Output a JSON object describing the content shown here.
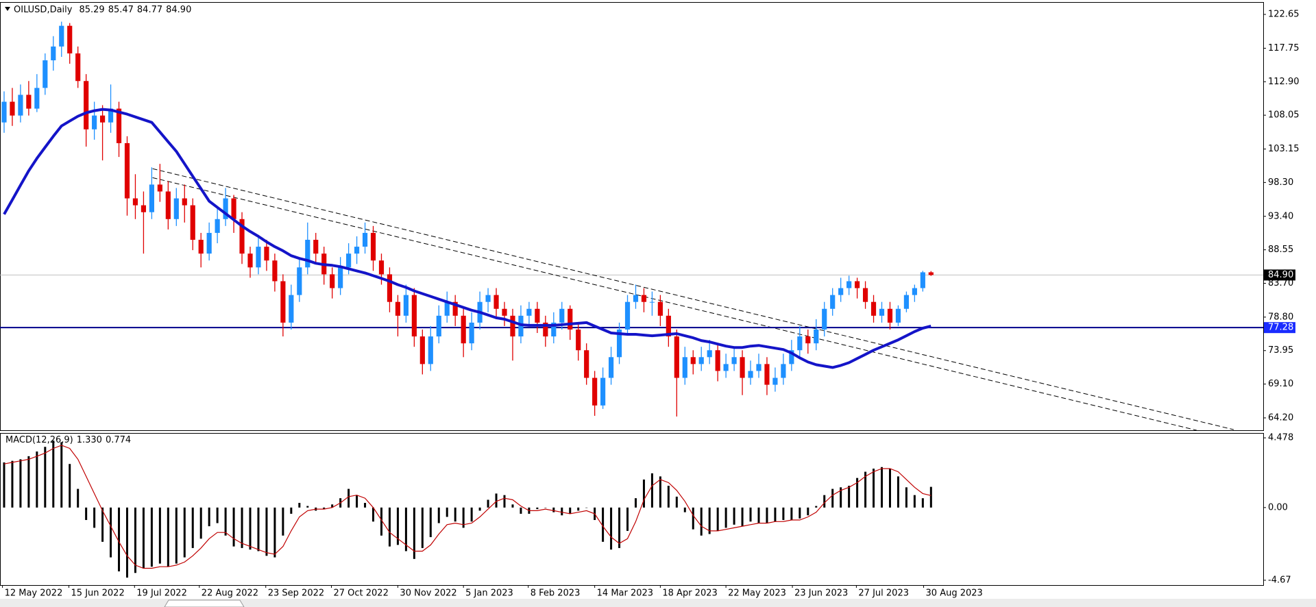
{
  "chart_data": [
    {
      "type": "candlestick",
      "header": {
        "symbol": "OILUSD,Daily",
        "ohlc": [
          "85.29",
          "85.47",
          "84.77",
          "84.90"
        ]
      },
      "up_color": "#1e90ff",
      "down_color": "#e00000",
      "candles": [
        [
          107,
          111.5,
          105.5,
          110
        ],
        [
          110,
          112,
          106.5,
          108
        ],
        [
          108,
          112.5,
          107,
          111
        ],
        [
          111,
          113,
          108,
          109
        ],
        [
          109,
          114,
          108.5,
          112
        ],
        [
          112,
          117,
          111,
          116
        ],
        [
          116,
          119.5,
          114.5,
          118
        ],
        [
          118,
          121.6,
          116.5,
          121
        ],
        [
          121,
          121.4,
          115.5,
          117
        ],
        [
          117,
          118,
          112,
          113
        ],
        [
          113,
          114,
          103.5,
          106
        ],
        [
          106,
          110,
          104.5,
          108
        ],
        [
          108,
          109.5,
          101.5,
          107
        ],
        [
          107,
          112.5,
          105.5,
          109
        ],
        [
          109,
          110,
          102,
          104
        ],
        [
          104,
          105,
          93.5,
          96
        ],
        [
          96,
          99.5,
          93,
          95
        ],
        [
          95,
          97,
          88,
          94
        ],
        [
          94,
          100.5,
          93,
          98
        ],
        [
          98,
          101,
          95.5,
          97
        ],
        [
          97,
          98.5,
          91.5,
          93
        ],
        [
          93,
          97.5,
          92,
          96
        ],
        [
          96,
          98,
          92.5,
          95
        ],
        [
          95,
          96,
          88.5,
          90
        ],
        [
          90,
          91,
          86,
          88
        ],
        [
          88,
          92.5,
          87,
          91
        ],
        [
          91,
          94.5,
          89.5,
          93
        ],
        [
          93,
          97.5,
          92,
          96
        ],
        [
          96,
          96.5,
          91,
          93
        ],
        [
          93,
          94,
          86.5,
          88
        ],
        [
          88,
          89,
          84.5,
          86
        ],
        [
          86,
          90.5,
          85,
          89
        ],
        [
          89,
          90,
          85.5,
          87
        ],
        [
          87,
          88,
          82.5,
          84
        ],
        [
          84,
          85,
          76,
          78
        ],
        [
          78,
          83.5,
          77,
          82
        ],
        [
          82,
          87.5,
          81,
          86
        ],
        [
          86,
          92.5,
          85,
          90
        ],
        [
          90,
          91,
          86.5,
          88
        ],
        [
          88,
          89,
          83.5,
          85
        ],
        [
          85,
          86,
          81.5,
          83
        ],
        [
          83,
          87.5,
          82,
          86
        ],
        [
          86,
          89.5,
          85,
          88
        ],
        [
          88,
          90.5,
          86.5,
          89
        ],
        [
          89,
          92.5,
          88,
          91
        ],
        [
          91,
          92,
          85.5,
          87
        ],
        [
          87,
          88,
          83.5,
          85
        ],
        [
          85,
          86,
          79.5,
          81
        ],
        [
          81,
          82,
          76,
          79
        ],
        [
          79,
          83.5,
          78,
          82
        ],
        [
          82,
          83,
          74.5,
          76
        ],
        [
          76,
          77,
          70.5,
          72
        ],
        [
          72,
          77.5,
          71,
          76
        ],
        [
          76,
          80.5,
          75,
          79
        ],
        [
          79,
          82.5,
          78,
          81
        ],
        [
          81,
          82,
          77.5,
          79
        ],
        [
          79,
          80,
          73,
          75
        ],
        [
          75,
          79.5,
          74,
          78
        ],
        [
          78,
          82.5,
          77,
          81
        ],
        [
          81,
          83,
          79.5,
          82
        ],
        [
          82,
          83,
          78.5,
          80
        ],
        [
          80,
          81,
          77.5,
          79
        ],
        [
          79,
          80,
          72.5,
          76
        ],
        [
          76,
          80.5,
          75,
          79
        ],
        [
          79,
          81,
          77.5,
          80
        ],
        [
          80,
          81,
          76.5,
          78
        ],
        [
          78,
          79,
          74.5,
          76
        ],
        [
          76,
          79.5,
          75,
          78
        ],
        [
          78,
          81,
          77,
          80
        ],
        [
          80,
          80.5,
          75.5,
          77
        ],
        [
          77,
          78,
          72.5,
          74
        ],
        [
          74,
          75,
          69,
          70
        ],
        [
          70,
          71,
          64.5,
          66
        ],
        [
          66,
          71.5,
          65.5,
          70
        ],
        [
          70,
          74.5,
          69,
          73
        ],
        [
          73,
          78,
          72,
          77
        ],
        [
          77,
          82,
          76.5,
          81
        ],
        [
          81,
          83.5,
          80,
          82
        ],
        [
          82,
          83,
          79.5,
          81
        ],
        [
          81,
          82.5,
          79,
          81
        ],
        [
          81,
          82,
          77.5,
          79
        ],
        [
          79,
          80,
          74.5,
          76
        ],
        [
          76,
          77,
          64.4,
          70
        ],
        [
          70,
          74.5,
          69,
          73
        ],
        [
          73,
          74,
          70.5,
          72
        ],
        [
          72,
          74.5,
          71,
          73
        ],
        [
          73,
          75.5,
          72,
          74
        ],
        [
          74,
          75,
          69.5,
          71
        ],
        [
          71,
          73.5,
          70,
          72
        ],
        [
          72,
          74.5,
          71,
          73
        ],
        [
          73,
          74,
          67.5,
          70
        ],
        [
          70,
          72.5,
          69,
          71
        ],
        [
          71,
          73.5,
          70,
          72
        ],
        [
          72,
          73,
          67.5,
          69
        ],
        [
          69,
          71.5,
          68,
          70
        ],
        [
          70,
          73.5,
          69,
          72
        ],
        [
          72,
          75.5,
          71,
          74
        ],
        [
          74,
          77.5,
          73,
          76
        ],
        [
          76,
          77,
          73.5,
          75
        ],
        [
          75,
          78.5,
          74,
          77
        ],
        [
          77,
          81,
          76,
          80
        ],
        [
          80,
          83,
          79,
          82
        ],
        [
          82,
          84.5,
          81,
          83
        ],
        [
          83,
          84.8,
          82,
          84
        ],
        [
          84,
          84.5,
          81.5,
          83
        ],
        [
          83,
          84,
          80,
          81
        ],
        [
          81,
          82,
          78,
          79
        ],
        [
          79,
          81,
          78,
          80
        ],
        [
          80,
          81,
          77,
          78
        ],
        [
          78,
          80.5,
          77.5,
          80
        ],
        [
          80,
          82.5,
          79.5,
          82
        ],
        [
          82,
          83.5,
          81,
          83
        ],
        [
          83,
          85.5,
          82.5,
          85.29
        ],
        [
          85.29,
          85.47,
          84.77,
          84.9
        ]
      ],
      "ma": {
        "color": "#1414c8",
        "values": [
          93.7,
          95.8,
          97.9,
          100.0,
          101.8,
          103.4,
          105.0,
          106.5,
          107.2,
          107.9,
          108.4,
          108.7,
          108.9,
          108.8,
          108.5,
          108.2,
          107.8,
          107.4,
          107.0,
          105.6,
          104.2,
          102.8,
          101.0,
          99.2,
          97.4,
          95.6,
          94.7,
          93.8,
          92.9,
          92.0,
          91.2,
          90.5,
          89.7,
          89.0,
          88.4,
          87.7,
          87.3,
          87.0,
          86.6,
          86.4,
          86.3,
          86.1,
          85.8,
          85.5,
          85.2,
          84.8,
          84.4,
          84.0,
          83.5,
          83.1,
          82.6,
          82.2,
          81.8,
          81.4,
          81.0,
          80.6,
          80.2,
          79.8,
          79.5,
          79.1,
          78.7,
          78.5,
          78.1,
          77.7,
          77.6,
          77.6,
          77.6,
          77.6,
          77.7,
          77.8,
          77.9,
          78.0,
          77.5,
          77.0,
          76.5,
          76.4,
          76.3,
          76.3,
          76.2,
          76.1,
          76.2,
          76.3,
          76.4,
          76.1,
          75.8,
          75.4,
          75.2,
          74.9,
          74.6,
          74.4,
          74.4,
          74.6,
          74.7,
          74.5,
          74.3,
          74.1,
          73.6,
          72.9,
          72.3,
          71.9,
          71.7,
          71.5,
          71.8,
          72.2,
          72.8,
          73.4,
          74.0,
          74.5,
          75.0,
          75.5,
          76.1,
          76.7,
          77.2,
          77.5
        ]
      },
      "trendlines": [
        {
          "x": [
            18.6,
            150.4
          ],
          "y": [
            100.3,
            62.5
          ]
        },
        {
          "x": [
            18.6,
            145.9
          ],
          "y": [
            99.0,
            62.4
          ]
        }
      ],
      "level": {
        "value": 77.28,
        "color": "#00008b",
        "label_color": "#1a2cff"
      },
      "price_line": {
        "value": 84.9,
        "label": "84.90"
      },
      "xlim": [
        0,
        154
      ],
      "ylim": [
        62.41,
        124.44
      ],
      "yticks": [
        122.65,
        117.75,
        {
          "value": 112.9,
          "label": "112.90"
        },
        108.05,
        103.15,
        {
          "value": 98.3,
          "label": "98.30"
        },
        {
          "value": 93.4,
          "label": "93.40"
        },
        88.55,
        {
          "value": 83.7,
          "label": "83.70"
        },
        {
          "value": 78.8,
          "label": "78.80"
        },
        73.95,
        {
          "value": 69.1,
          "label": "69.10"
        },
        {
          "value": 64.2,
          "label": "64.20"
        }
      ]
    },
    {
      "type": "macd",
      "title": "MACD(12,26,9)",
      "main": {
        "value": 1.33,
        "label": "1.330"
      },
      "signal_value": 0.774,
      "histogram": {
        "color": "#000000",
        "values": [
          2.9,
          3.0,
          3.1,
          3.3,
          3.6,
          3.9,
          4.3,
          4.2,
          2.8,
          1.2,
          -0.8,
          -1.3,
          -2.2,
          -3.2,
          -4.1,
          -4.5,
          -4.2,
          -3.9,
          -3.8,
          -3.6,
          -3.8,
          -3.6,
          -3.2,
          -2.6,
          -2.0,
          -1.2,
          -1.0,
          -1.8,
          -2.5,
          -2.6,
          -2.7,
          -2.8,
          -3.1,
          -3.2,
          -1.8,
          -0.4,
          0.3,
          0.1,
          -0.2,
          -0.1,
          0.2,
          0.6,
          1.2,
          0.8,
          0.3,
          -0.9,
          -1.8,
          -2.5,
          -2.4,
          -2.8,
          -3.3,
          -2.6,
          -1.9,
          -1.0,
          -0.6,
          -0.9,
          -1.3,
          -0.9,
          -0.2,
          0.5,
          0.9,
          0.8,
          0.2,
          -0.4,
          -0.4,
          -0.1,
          0.0,
          -0.3,
          -0.5,
          -0.4,
          -0.2,
          0.0,
          -0.8,
          -2.2,
          -2.7,
          -2.6,
          -1.5,
          0.6,
          1.8,
          2.2,
          2.0,
          1.4,
          0.7,
          -0.3,
          -1.4,
          -1.8,
          -1.7,
          -1.5,
          -1.3,
          -1.1,
          -1.2,
          -0.9,
          -1.0,
          -1.0,
          -0.9,
          -0.8,
          -0.8,
          -0.7,
          -0.5,
          0.1,
          0.8,
          1.2,
          1.3,
          1.4,
          1.9,
          2.3,
          2.5,
          2.6,
          2.5,
          2.0,
          1.3,
          0.8,
          0.6,
          1.33
        ]
      },
      "signal": {
        "color": "#c00000",
        "values": [
          2.8,
          2.9,
          3.0,
          3.1,
          3.3,
          3.5,
          3.8,
          4.0,
          3.8,
          3.1,
          2.0,
          0.9,
          -0.2,
          -1.2,
          -2.2,
          -3.1,
          -3.7,
          -3.9,
          -3.9,
          -3.8,
          -3.8,
          -3.7,
          -3.5,
          -3.1,
          -2.6,
          -2.0,
          -1.6,
          -1.6,
          -2.0,
          -2.3,
          -2.5,
          -2.7,
          -2.9,
          -3.0,
          -2.5,
          -1.5,
          -0.6,
          -0.2,
          -0.1,
          -0.1,
          0.0,
          0.3,
          0.7,
          0.8,
          0.6,
          0.0,
          -0.8,
          -1.6,
          -2.0,
          -2.4,
          -2.8,
          -2.8,
          -2.4,
          -1.7,
          -1.1,
          -1.0,
          -1.1,
          -1.0,
          -0.6,
          -0.1,
          0.4,
          0.6,
          0.5,
          0.1,
          -0.2,
          -0.2,
          -0.1,
          -0.2,
          -0.3,
          -0.4,
          -0.3,
          -0.2,
          -0.4,
          -1.2,
          -1.9,
          -2.3,
          -2.0,
          -0.9,
          0.5,
          1.4,
          1.8,
          1.6,
          1.1,
          0.4,
          -0.5,
          -1.2,
          -1.5,
          -1.5,
          -1.4,
          -1.3,
          -1.2,
          -1.1,
          -1.0,
          -1.0,
          -0.9,
          -0.9,
          -0.8,
          -0.8,
          -0.6,
          -0.3,
          0.3,
          0.8,
          1.1,
          1.3,
          1.6,
          2.0,
          2.3,
          2.5,
          2.5,
          2.3,
          1.8,
          1.3,
          0.9,
          0.774
        ]
      },
      "xlim": [
        0,
        154
      ],
      "ylim": [
        -4.98,
        4.79
      ],
      "yticks": [
        4.478,
        {
          "value": 0,
          "label": "0.00"
        },
        -4.67
      ],
      "xticks": [
        {
          "value": 0.3,
          "label": "12 May 2022"
        },
        {
          "value": 8.4,
          "label": "15 Jun 2022"
        },
        {
          "value": 16.4,
          "label": "19 Jul 2022"
        },
        {
          "value": 24.3,
          "label": "22 Aug 2022"
        },
        {
          "value": 32.4,
          "label": "23 Sep 2022"
        },
        {
          "value": 40.4,
          "label": "27 Oct 2022"
        },
        {
          "value": 48.5,
          "label": "30 Nov 2022"
        },
        {
          "value": 56.5,
          "label": "5 Jan 2023"
        },
        {
          "value": 64.4,
          "label": "8 Feb 2023"
        },
        {
          "value": 72.5,
          "label": "14 Mar 2023"
        },
        {
          "value": 80.5,
          "label": "18 Apr 2023"
        },
        {
          "value": 88.5,
          "label": "22 May 2023"
        },
        {
          "value": 96.6,
          "label": "23 Jun 2023"
        },
        {
          "value": 104.4,
          "label": "27 Jul 2023"
        },
        {
          "value": 112.6,
          "label": "30 Aug 2023"
        }
      ]
    }
  ]
}
